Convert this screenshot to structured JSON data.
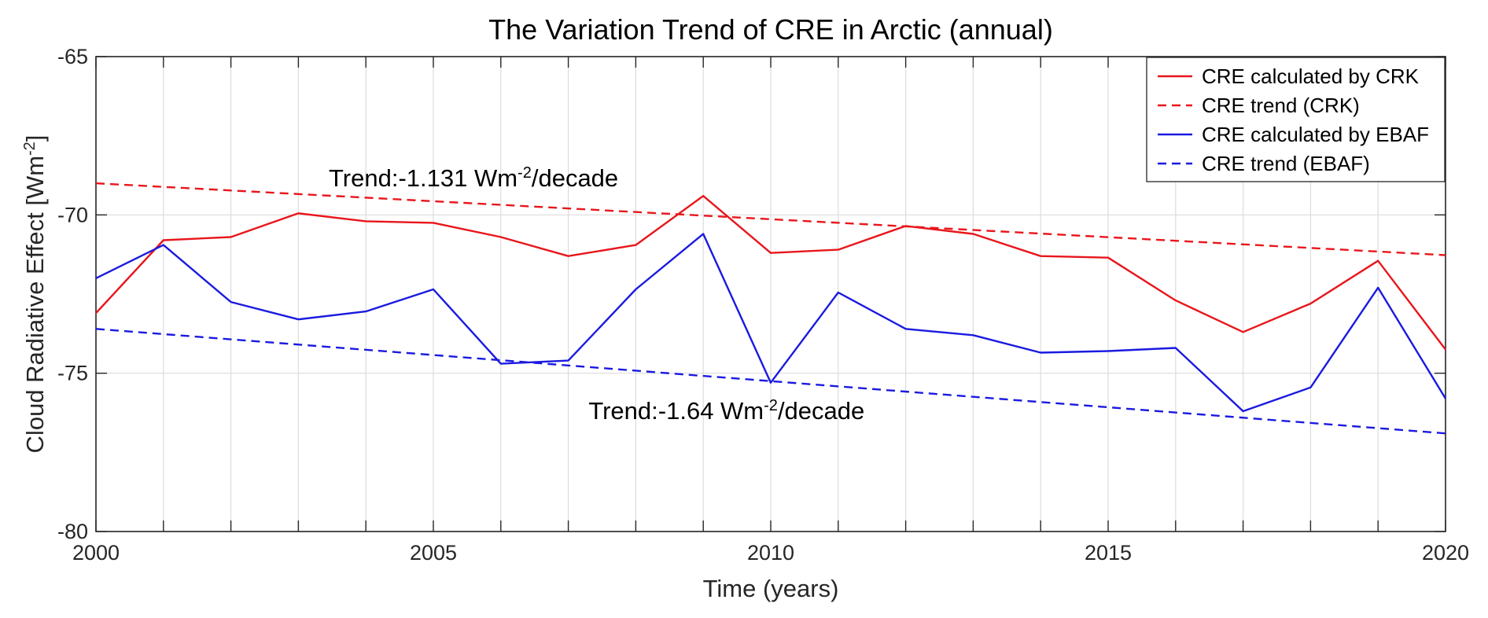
{
  "chart_data": {
    "type": "line",
    "title": "The Variation Trend of CRE in Arctic (annual)",
    "xlabel": "Time (years)",
    "ylabel": {
      "main": "Cloud Radiative Effect [Wm",
      "sup": "-2",
      "close": "]"
    },
    "xlim": [
      2000,
      2020
    ],
    "ylim": [
      -80,
      -65
    ],
    "x_ticks": [
      2000,
      2005,
      2010,
      2015,
      2020
    ],
    "y_ticks": [
      -80,
      -75,
      -70,
      -65
    ],
    "x_grid_step": 1,
    "grid": true,
    "legend_position": "top-right",
    "series": [
      {
        "name": "CRE calculated by CRK",
        "color": "#e8161b",
        "style": "solid",
        "x": [
          2000,
          2001,
          2002,
          2003,
          2004,
          2005,
          2006,
          2007,
          2008,
          2009,
          2010,
          2011,
          2012,
          2013,
          2014,
          2015,
          2016,
          2017,
          2018,
          2019,
          2020
        ],
        "y": [
          -73.1,
          -70.8,
          -70.7,
          -69.95,
          -70.2,
          -70.25,
          -70.7,
          -71.3,
          -70.95,
          -69.4,
          -71.2,
          -71.1,
          -70.35,
          -70.6,
          -71.3,
          -71.35,
          -72.7,
          -73.7,
          -72.8,
          -71.45,
          -74.25
        ]
      },
      {
        "name": "CRE trend (CRK)",
        "color": "#e8161b",
        "style": "dashed",
        "x": [
          2000,
          2020
        ],
        "y": [
          -69.0,
          -71.27
        ]
      },
      {
        "name": "CRE calculated by EBAF",
        "color": "#1a1ae0",
        "style": "solid",
        "x": [
          2000,
          2001,
          2002,
          2003,
          2004,
          2005,
          2006,
          2007,
          2008,
          2009,
          2010,
          2011,
          2012,
          2013,
          2014,
          2015,
          2016,
          2017,
          2018,
          2019,
          2020
        ],
        "y": [
          -72.0,
          -70.95,
          -72.75,
          -73.3,
          -73.05,
          -72.35,
          -74.7,
          -74.6,
          -72.35,
          -70.6,
          -75.3,
          -72.45,
          -73.6,
          -73.8,
          -74.35,
          -74.3,
          -74.2,
          -76.2,
          -75.45,
          -72.3,
          -75.8
        ]
      },
      {
        "name": "CRE trend (EBAF)",
        "color": "#1a1ae0",
        "style": "dashed",
        "x": [
          2000,
          2020
        ],
        "y": [
          -73.6,
          -76.9
        ]
      }
    ],
    "annotations": [
      {
        "id": "crk",
        "prefix": "Trend:-1.131 Wm",
        "sup": "-2",
        "suffix": "/decade",
        "x": 2003.45,
        "y": -69.1
      },
      {
        "id": "ebaf",
        "prefix": "Trend:-1.64 Wm",
        "sup": "-2",
        "suffix": "/decade",
        "x": 2007.3,
        "y": -76.45
      }
    ]
  }
}
